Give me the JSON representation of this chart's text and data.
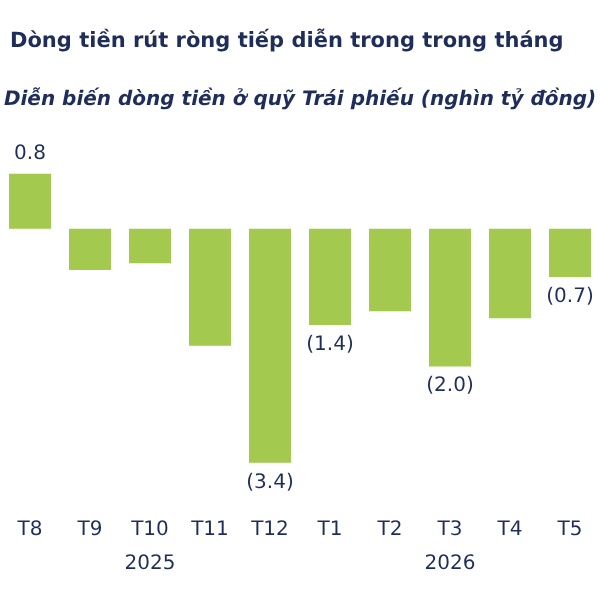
{
  "chart_data": {
    "type": "bar",
    "title": "Dòng tiền rút ròng tiếp diễn trong trong tháng",
    "subtitle": "Diễn biến dòng tiền ở quỹ Trái phiếu (nghìn tỷ đồng)",
    "categories": [
      "T8",
      "T9",
      "T10",
      "T11",
      "T12",
      "T1",
      "T2",
      "T3",
      "T4",
      "T5"
    ],
    "values": [
      0.8,
      -0.6,
      -0.5,
      -1.7,
      -3.4,
      -1.4,
      -1.2,
      -2.0,
      -1.3,
      -0.7
    ],
    "value_labels": [
      "0.8",
      null,
      null,
      null,
      "(3.4)",
      "(1.4)",
      null,
      "(2.0)",
      null,
      "(0.7)"
    ],
    "color": "#a3c94f",
    "annotations": [
      "2025",
      "2026"
    ]
  }
}
